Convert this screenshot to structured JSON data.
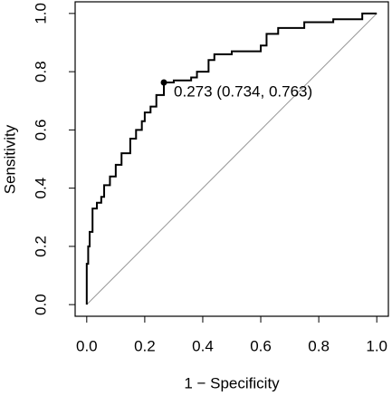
{
  "chart_data": {
    "type": "line",
    "xlabel": "1 − Specificity",
    "ylabel": "Sensitivity",
    "x": [
      0,
      0,
      0.005,
      0.005,
      0.01,
      0.01,
      0.02,
      0.02,
      0.035,
      0.035,
      0.05,
      0.05,
      0.06,
      0.06,
      0.08,
      0.08,
      0.1,
      0.1,
      0.12,
      0.12,
      0.15,
      0.15,
      0.17,
      0.17,
      0.19,
      0.19,
      0.2,
      0.2,
      0.22,
      0.22,
      0.24,
      0.24,
      0.266,
      0.266,
      0.3,
      0.3,
      0.36,
      0.36,
      0.38,
      0.38,
      0.42,
      0.42,
      0.44,
      0.44,
      0.5,
      0.5,
      0.6,
      0.6,
      0.62,
      0.62,
      0.66,
      0.66,
      0.75,
      0.75,
      0.85,
      0.85,
      0.95,
      0.95,
      1
    ],
    "series": [
      {
        "color": "#000000",
        "values": [
          0,
          0.14,
          0.14,
          0.2,
          0.2,
          0.25,
          0.25,
          0.33,
          0.33,
          0.35,
          0.35,
          0.37,
          0.37,
          0.41,
          0.41,
          0.44,
          0.44,
          0.48,
          0.48,
          0.52,
          0.52,
          0.57,
          0.57,
          0.6,
          0.6,
          0.63,
          0.63,
          0.66,
          0.66,
          0.68,
          0.68,
          0.72,
          0.72,
          0.763,
          0.763,
          0.77,
          0.77,
          0.78,
          0.78,
          0.8,
          0.8,
          0.84,
          0.84,
          0.86,
          0.86,
          0.87,
          0.87,
          0.89,
          0.89,
          0.93,
          0.93,
          0.95,
          0.95,
          0.97,
          0.97,
          0.98,
          0.98,
          1,
          1
        ]
      }
    ],
    "annotation": {
      "text": "0.273 (0.734, 0.763)",
      "x": 0.266,
      "y": 0.763
    },
    "reference_color": "#999999",
    "xlim": [
      -0.04,
      1.04
    ],
    "ylim": [
      -0.04,
      1.04
    ],
    "xticks": [
      {
        "value": 0,
        "label": "0.0"
      },
      0.2,
      0.4,
      0.6,
      0.8,
      {
        "value": 1,
        "label": "1.0"
      }
    ],
    "yticks": [
      {
        "value": 0,
        "label": "0.0"
      },
      0.2,
      0.4,
      0.6,
      0.8,
      {
        "value": 1,
        "label": "1.0"
      }
    ],
    "grid": false
  }
}
